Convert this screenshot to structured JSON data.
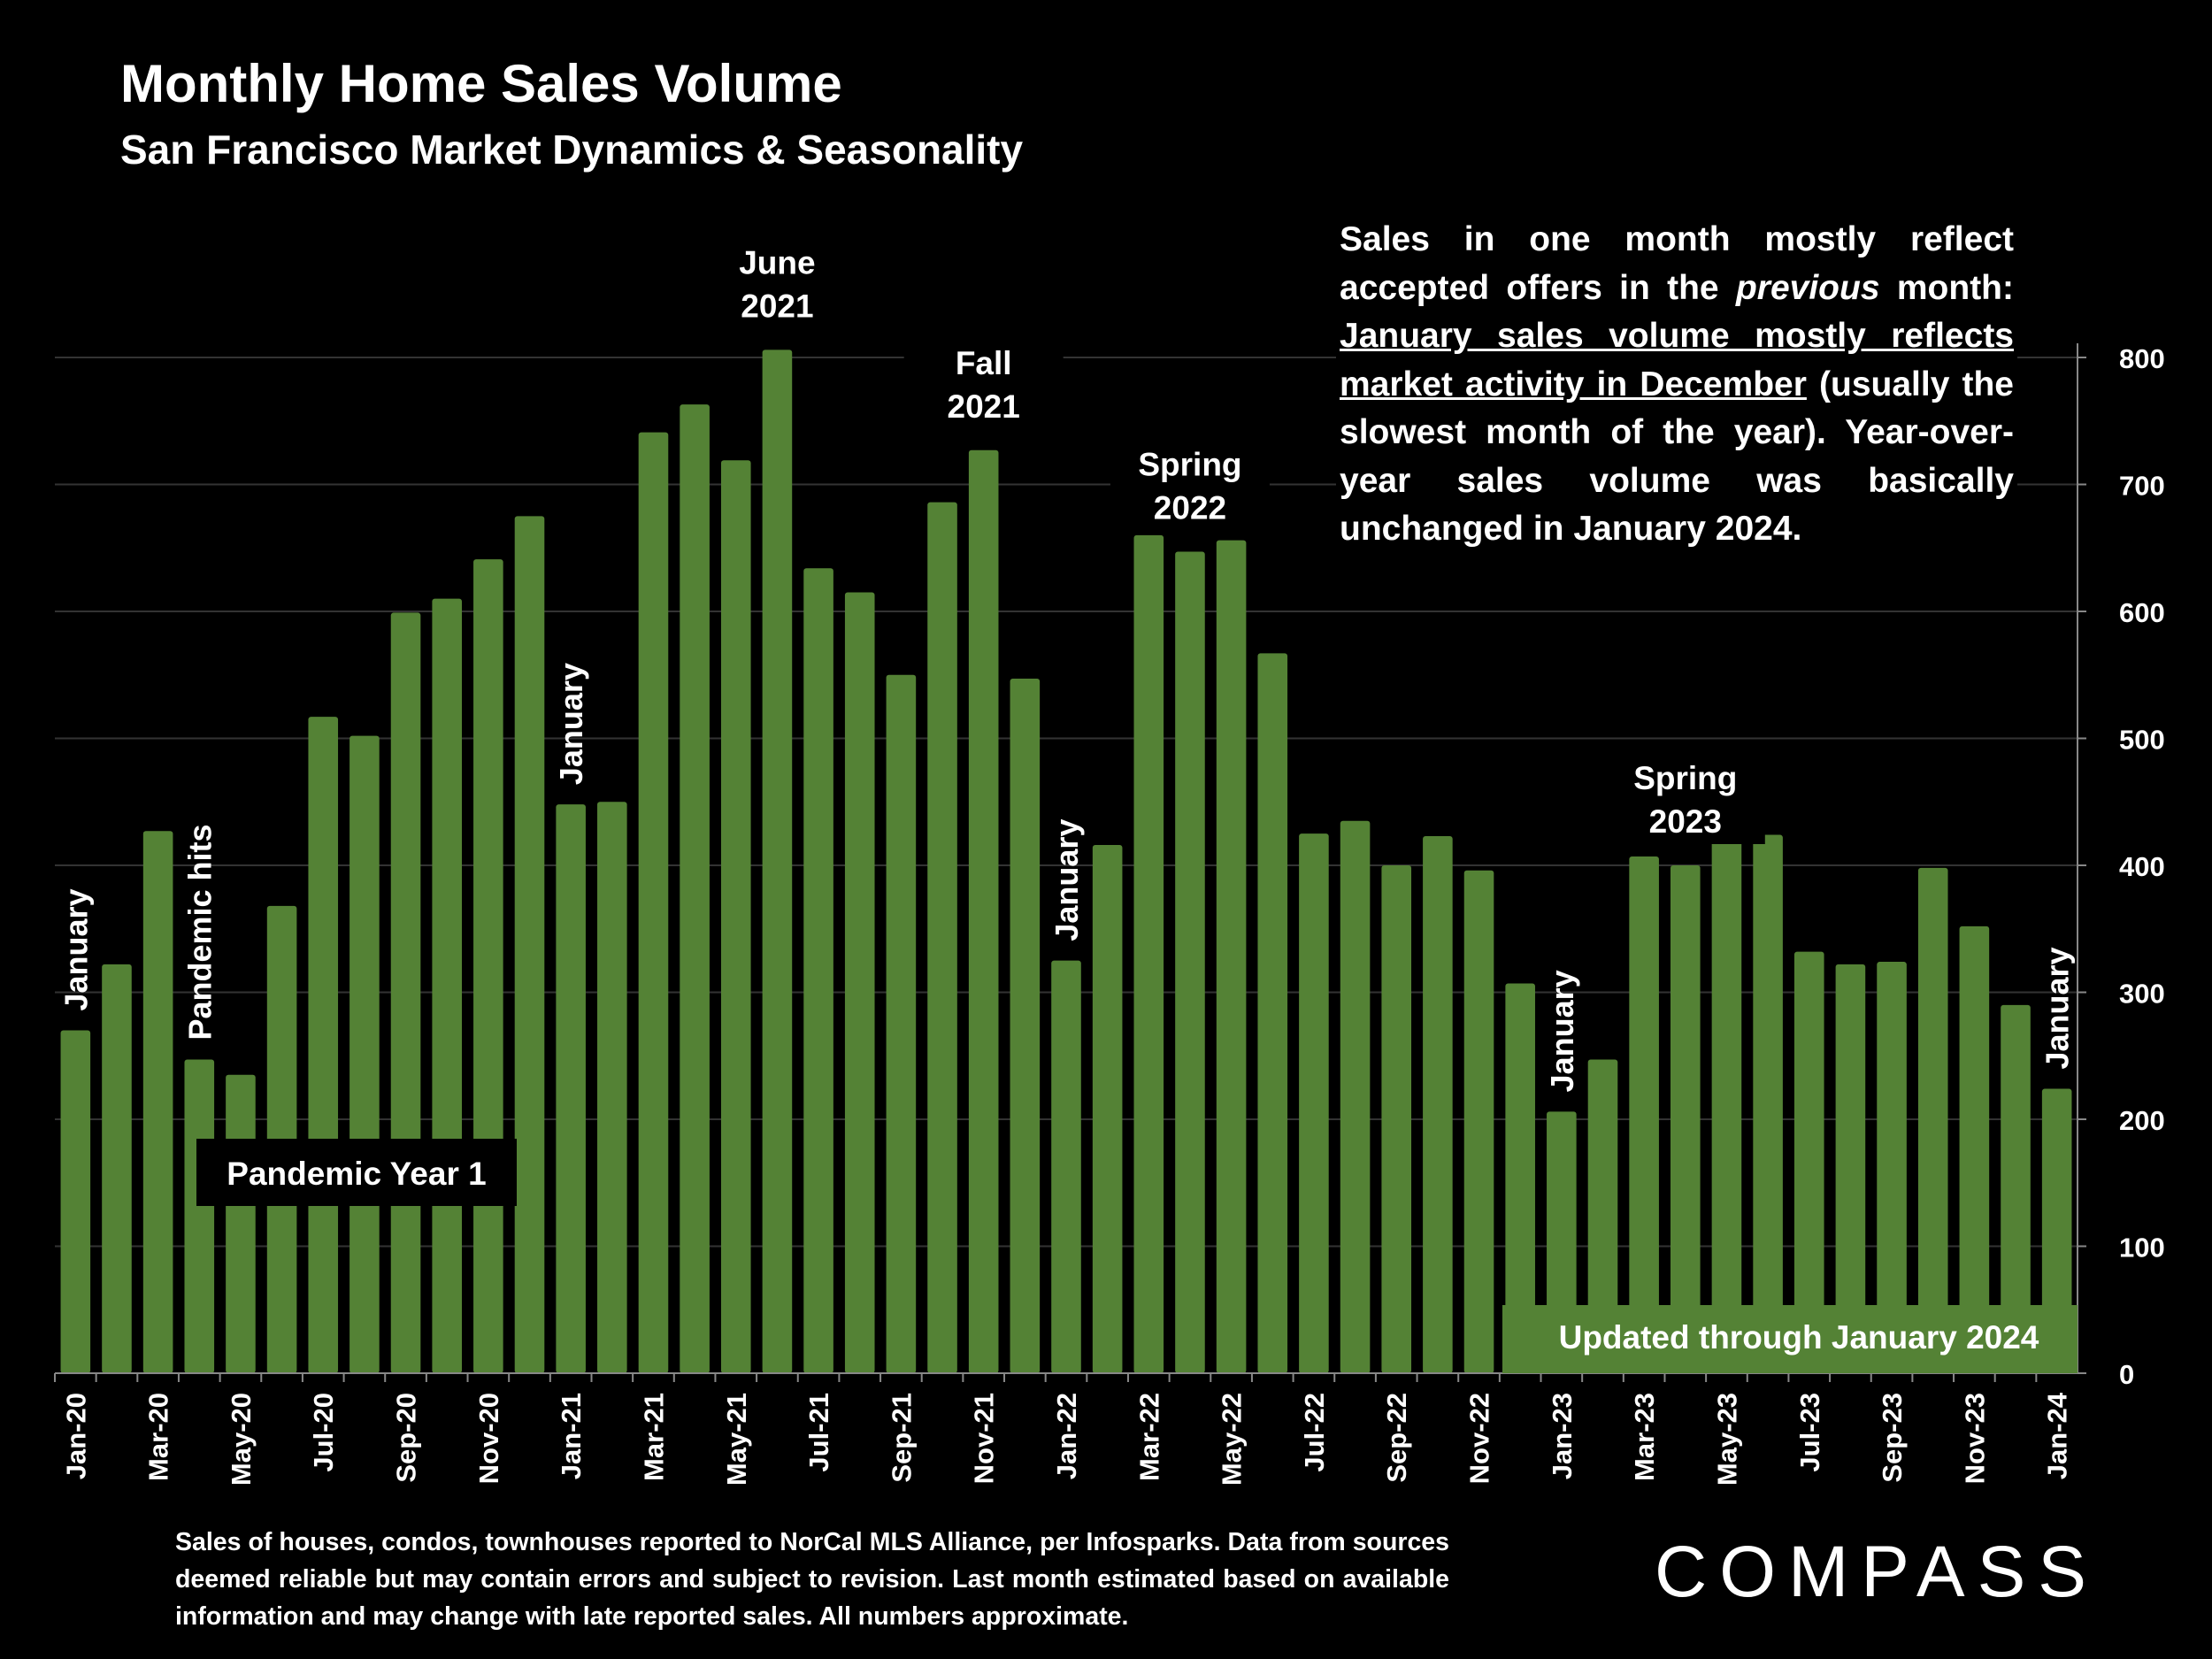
{
  "header": {
    "title": "Monthly Home Sales Volume",
    "subtitle": "San Francisco Market Dynamics & Seasonality"
  },
  "note": {
    "part1": "Sales in one month mostly reflect accepted offers in the ",
    "emphasis": "previous",
    "part2": " month: ",
    "underlined": "January sales volume mostly reflects market activity in December",
    "part3": " (usually the slowest month of the year). Year-over-year sales volume was basically unchanged in January 2024."
  },
  "footer": {
    "source": "Sales of houses, condos, townhouses reported to NorCal MLS Alliance, per Infosparks. Data from sources deemed reliable but may contain errors and subject to revision. Last month estimated based on available information and may change with late reported sales. All numbers approximate."
  },
  "logo": {
    "text": "COMPASS"
  },
  "colors": {
    "bar": "#548235",
    "background": "#000000",
    "text": "#ffffff",
    "grid": "#333333"
  },
  "chart_data": {
    "type": "bar",
    "x": [
      "Jan-20",
      "Feb-20",
      "Mar-20",
      "Apr-20",
      "May-20",
      "Jun-20",
      "Jul-20",
      "Aug-20",
      "Sep-20",
      "Oct-20",
      "Nov-20",
      "Dec-20",
      "Jan-21",
      "Feb-21",
      "Mar-21",
      "Apr-21",
      "May-21",
      "Jun-21",
      "Jul-21",
      "Aug-21",
      "Sep-21",
      "Oct-21",
      "Nov-21",
      "Dec-21",
      "Jan-22",
      "Feb-22",
      "Mar-22",
      "Apr-22",
      "May-22",
      "Jun-22",
      "Jul-22",
      "Aug-22",
      "Sep-22",
      "Oct-22",
      "Nov-22",
      "Dec-22",
      "Jan-23",
      "Feb-23",
      "Mar-23",
      "Apr-23",
      "May-23",
      "Jun-23",
      "Jul-23",
      "Aug-23",
      "Sep-23",
      "Oct-23",
      "Nov-23",
      "Dec-23",
      "Jan-24"
    ],
    "values": [
      270,
      322,
      427,
      247,
      235,
      368,
      517,
      502,
      599,
      610,
      641,
      675,
      448,
      450,
      741,
      763,
      719,
      806,
      634,
      615,
      550,
      686,
      727,
      547,
      325,
      416,
      660,
      647,
      656,
      567,
      425,
      435,
      400,
      423,
      396,
      307,
      206,
      247,
      407,
      400,
      424,
      424,
      332,
      322,
      324,
      398,
      352,
      290,
      224
    ],
    "xtick_labels": [
      "Jan-20",
      "Mar-20",
      "May-20",
      "Jul-20",
      "Sep-20",
      "Nov-20",
      "Jan-21",
      "Mar-21",
      "May-21",
      "Jul-21",
      "Sep-21",
      "Nov-21",
      "Jan-22",
      "Mar-22",
      "May-22",
      "Jul-22",
      "Sep-22",
      "Nov-22",
      "Jan-23",
      "Mar-23",
      "May-23",
      "Jul-23",
      "Sep-23",
      "Nov-23",
      "Jan-24"
    ],
    "ylim": [
      0,
      800
    ],
    "yticks": [
      0,
      100,
      200,
      300,
      400,
      500,
      600,
      700,
      800
    ],
    "y_axis_side": "right",
    "grid": true,
    "annotations": {
      "vertical": [
        {
          "text": "January",
          "index": 0
        },
        {
          "text": "Pandemic hits",
          "index": 3
        },
        {
          "text": "January",
          "index": 12
        },
        {
          "text": "January",
          "index": 24
        },
        {
          "text": "January",
          "index": 36
        },
        {
          "text": "January",
          "index": 48
        }
      ],
      "horizontal": [
        {
          "lines": [
            "June",
            "2021"
          ],
          "index": 17
        },
        {
          "lines": [
            "Fall",
            "2021"
          ],
          "index": 22
        },
        {
          "lines": [
            "Spring",
            "2022"
          ],
          "index": 27
        },
        {
          "lines": [
            "Spring",
            "2023"
          ],
          "index": 39
        }
      ],
      "boxes": [
        {
          "text": "Pandemic Year 1"
        },
        {
          "text": "Updated through January 2024"
        }
      ]
    }
  }
}
